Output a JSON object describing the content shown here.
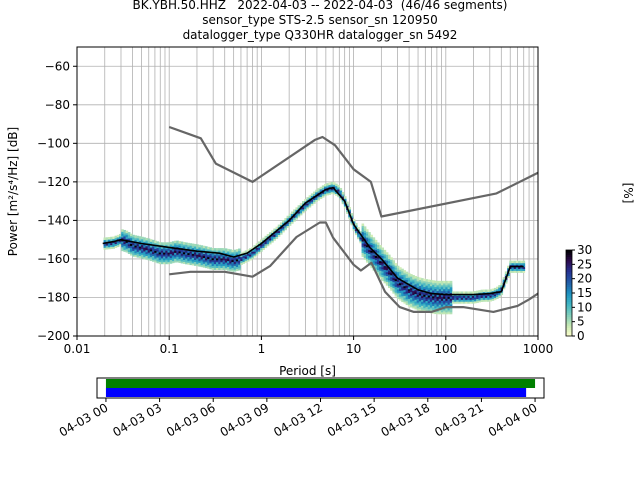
{
  "title_lines": [
    "BK.YBH.50.HHZ   2022-04-03 -- 2022-04-03  (46/46 segments)",
    "sensor_type STS-2.5 sensor_sn 120950",
    "datalogger_type Q330HR datalogger_sn 5492"
  ],
  "chart_data": [
    {
      "type": "heatmap",
      "xlabel": "Period [s]",
      "ylabel": "Power [m²/s⁴/Hz] [dB]",
      "xscale": "log",
      "xlim": [
        0.01,
        1000
      ],
      "ylim": [
        -200,
        -50
      ],
      "x_tick_labels": [
        "0.01",
        "0.1",
        "1",
        "10",
        "100",
        "1000"
      ],
      "y_ticks": [
        -60,
        -80,
        -100,
        -120,
        -140,
        -160,
        -180,
        -200
      ],
      "grid": true,
      "colorbar": {
        "label": "[%]",
        "ticks": [
          0,
          5,
          10,
          15,
          20,
          25,
          30
        ],
        "range": [
          0,
          30
        ],
        "colormap": [
          "#ffffcc",
          "#c7e9b4",
          "#7fcdbb",
          "#41b6c4",
          "#1d91c0",
          "#225ea8",
          "#253494",
          "#2d0a4e",
          "#000000"
        ]
      },
      "series": [
        {
          "name": "",
          "color": "#000000",
          "points": [
            [
              0.019,
              -152
            ],
            [
              0.025,
              -151
            ],
            [
              0.03,
              -150
            ],
            [
              0.05,
              -152
            ],
            [
              0.1,
              -154
            ],
            [
              0.2,
              -156
            ],
            [
              0.35,
              -157
            ],
            [
              0.5,
              -159
            ],
            [
              0.7,
              -157
            ],
            [
              1,
              -152
            ],
            [
              2,
              -140
            ],
            [
              3,
              -131
            ],
            [
              5,
              -124
            ],
            [
              6,
              -123
            ],
            [
              8,
              -130
            ],
            [
              10,
              -142
            ],
            [
              15,
              -154
            ],
            [
              20,
              -160
            ],
            [
              30,
              -170
            ],
            [
              50,
              -176
            ],
            [
              70,
              -178
            ],
            [
              100,
              -178.5
            ],
            [
              200,
              -178.5
            ],
            [
              300,
              -178
            ],
            [
              400,
              -177
            ],
            [
              500,
              -164
            ],
            [
              600,
              -164
            ],
            [
              700,
              -164
            ]
          ]
        },
        {
          "name": "",
          "color": "#666666",
          "points": [
            [
              0.1,
              -91.5
            ],
            [
              0.22,
              -97.4
            ],
            [
              0.32,
              -110.5
            ],
            [
              0.8,
              -120
            ],
            [
              3.8,
              -98.2
            ],
            [
              4.6,
              -96.7
            ],
            [
              6.3,
              -101
            ],
            [
              10,
              -113.5
            ],
            [
              15.4,
              -120
            ],
            [
              20,
              -138
            ],
            [
              354.8,
              -126
            ],
            [
              10000,
              -91.5
            ]
          ]
        },
        {
          "name": "",
          "color": "#666666",
          "points": [
            [
              0.1,
              -168
            ],
            [
              0.17,
              -166.7
            ],
            [
              0.4,
              -166.7
            ],
            [
              0.8,
              -169.2
            ],
            [
              1.24,
              -163.7
            ],
            [
              2.4,
              -148.6
            ],
            [
              4.3,
              -141.1
            ],
            [
              5,
              -141.1
            ],
            [
              6,
              -149
            ],
            [
              10,
              -163
            ],
            [
              12,
              -166
            ],
            [
              15.6,
              -162
            ],
            [
              21.9,
              -177
            ],
            [
              31.6,
              -185
            ],
            [
              45,
              -187.5
            ],
            [
              70,
              -187.5
            ],
            [
              101,
              -185
            ],
            [
              154,
              -185
            ],
            [
              328,
              -187.5
            ],
            [
              600,
              -184.4
            ],
            [
              800,
              -181
            ],
            [
              1000,
              -178
            ],
            [
              10000,
              -168
            ]
          ]
        }
      ],
      "psd_cloud": [
        [
          0.02,
          -152
        ],
        [
          0.025,
          -151.5
        ],
        [
          0.03,
          -150
        ],
        [
          0.035,
          -151
        ],
        [
          0.04,
          -153
        ],
        [
          0.05,
          -154
        ],
        [
          0.06,
          -155
        ],
        [
          0.07,
          -156
        ],
        [
          0.08,
          -157
        ],
        [
          0.1,
          -157
        ],
        [
          0.12,
          -156
        ],
        [
          0.15,
          -157
        ],
        [
          0.2,
          -158
        ],
        [
          0.25,
          -159
        ],
        [
          0.3,
          -160
        ],
        [
          0.4,
          -160
        ],
        [
          0.5,
          -161
        ],
        [
          0.6,
          -160
        ],
        [
          0.8,
          -157
        ],
        [
          1,
          -153
        ],
        [
          1.5,
          -146
        ],
        [
          2,
          -140
        ],
        [
          3,
          -132
        ],
        [
          4,
          -127
        ],
        [
          5,
          -124
        ],
        [
          6,
          -123
        ],
        [
          7,
          -125
        ],
        [
          8,
          -130
        ],
        [
          9,
          -136
        ],
        [
          10,
          -142
        ],
        [
          12,
          -149
        ],
        [
          15,
          -155
        ],
        [
          20,
          -162
        ],
        [
          25,
          -167
        ],
        [
          30,
          -172
        ],
        [
          40,
          -176
        ],
        [
          50,
          -178
        ],
        [
          60,
          -179
        ],
        [
          80,
          -180
        ],
        [
          100,
          -180
        ],
        [
          150,
          -180
        ],
        [
          200,
          -180
        ],
        [
          250,
          -179
        ],
        [
          300,
          -179
        ],
        [
          350,
          -178
        ],
        [
          400,
          -176
        ],
        [
          500,
          -164
        ],
        [
          600,
          -164
        ],
        [
          700,
          -164
        ]
      ]
    },
    {
      "type": "timeline",
      "x_tick_labels": [
        "04-03 00",
        "04-03 03",
        "04-03 06",
        "04-03 09",
        "04-03 12",
        "04-03 15",
        "04-03 18",
        "04-03 21",
        "04-04 00"
      ],
      "xlim_hours": [
        -0.5,
        24.5
      ],
      "bars": [
        {
          "name": "",
          "color": "#008000",
          "start_hour": 0,
          "end_hour": 24
        },
        {
          "name": "",
          "color": "#0000ff",
          "start_hour": 0,
          "end_hour": 23.5
        }
      ]
    }
  ]
}
